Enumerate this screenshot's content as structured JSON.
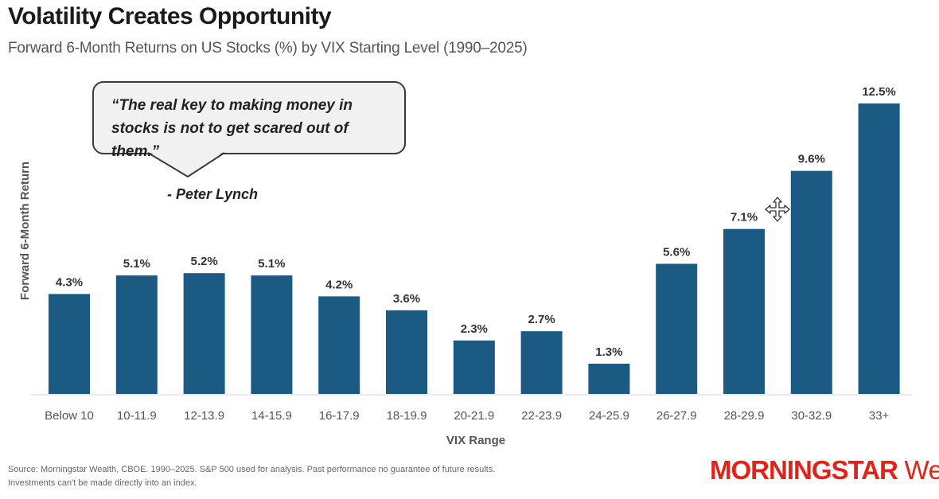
{
  "header": {
    "title": "Volatility Creates Opportunity",
    "subtitle": "Forward 6-Month Returns on US Stocks (%) by VIX Starting Level (1990–2025)"
  },
  "quote": {
    "text": "“The real key to making money in stocks is not to get scared out of them.”",
    "attribution": "- Peter Lynch"
  },
  "footer": {
    "source_line1": "Source: Morningstar Wealth, CBOE. 1990–2025. S&P 500 used for analysis. Past performance no guarantee of future results.",
    "source_line2": "Investments can't be made directly into an index."
  },
  "logo": {
    "brand": "MORNINGSTAR",
    "sub": "Wealth"
  },
  "colors": {
    "bar": "#1b5a82",
    "logo": "#e2231a"
  },
  "icons": {
    "cursor": "move-cursor-icon"
  },
  "chart_data": {
    "type": "bar",
    "title": "Volatility Creates Opportunity",
    "subtitle": "Forward 6-Month Returns on US Stocks (%) by VIX Starting Level (1990–2025)",
    "xlabel": "VIX Range",
    "ylabel": "Forward 6-Month Return",
    "categories": [
      "Below 10",
      "10-11.9",
      "12-13.9",
      "14-15.9",
      "16-17.9",
      "18-19.9",
      "20-21.9",
      "22-23.9",
      "24-25.9",
      "26-27.9",
      "28-29.9",
      "30-32.9",
      "33+"
    ],
    "values": [
      4.3,
      5.1,
      5.2,
      5.1,
      4.2,
      3.6,
      2.3,
      2.7,
      1.3,
      5.6,
      7.1,
      9.6,
      12.5
    ],
    "labels": [
      "4.3%",
      "5.1%",
      "5.2%",
      "5.1%",
      "4.2%",
      "3.6%",
      "2.3%",
      "2.7%",
      "1.3%",
      "5.6%",
      "7.1%",
      "9.6%",
      "12.5%"
    ],
    "ylim": [
      0,
      12.5
    ],
    "grid": false,
    "legend": "none"
  }
}
